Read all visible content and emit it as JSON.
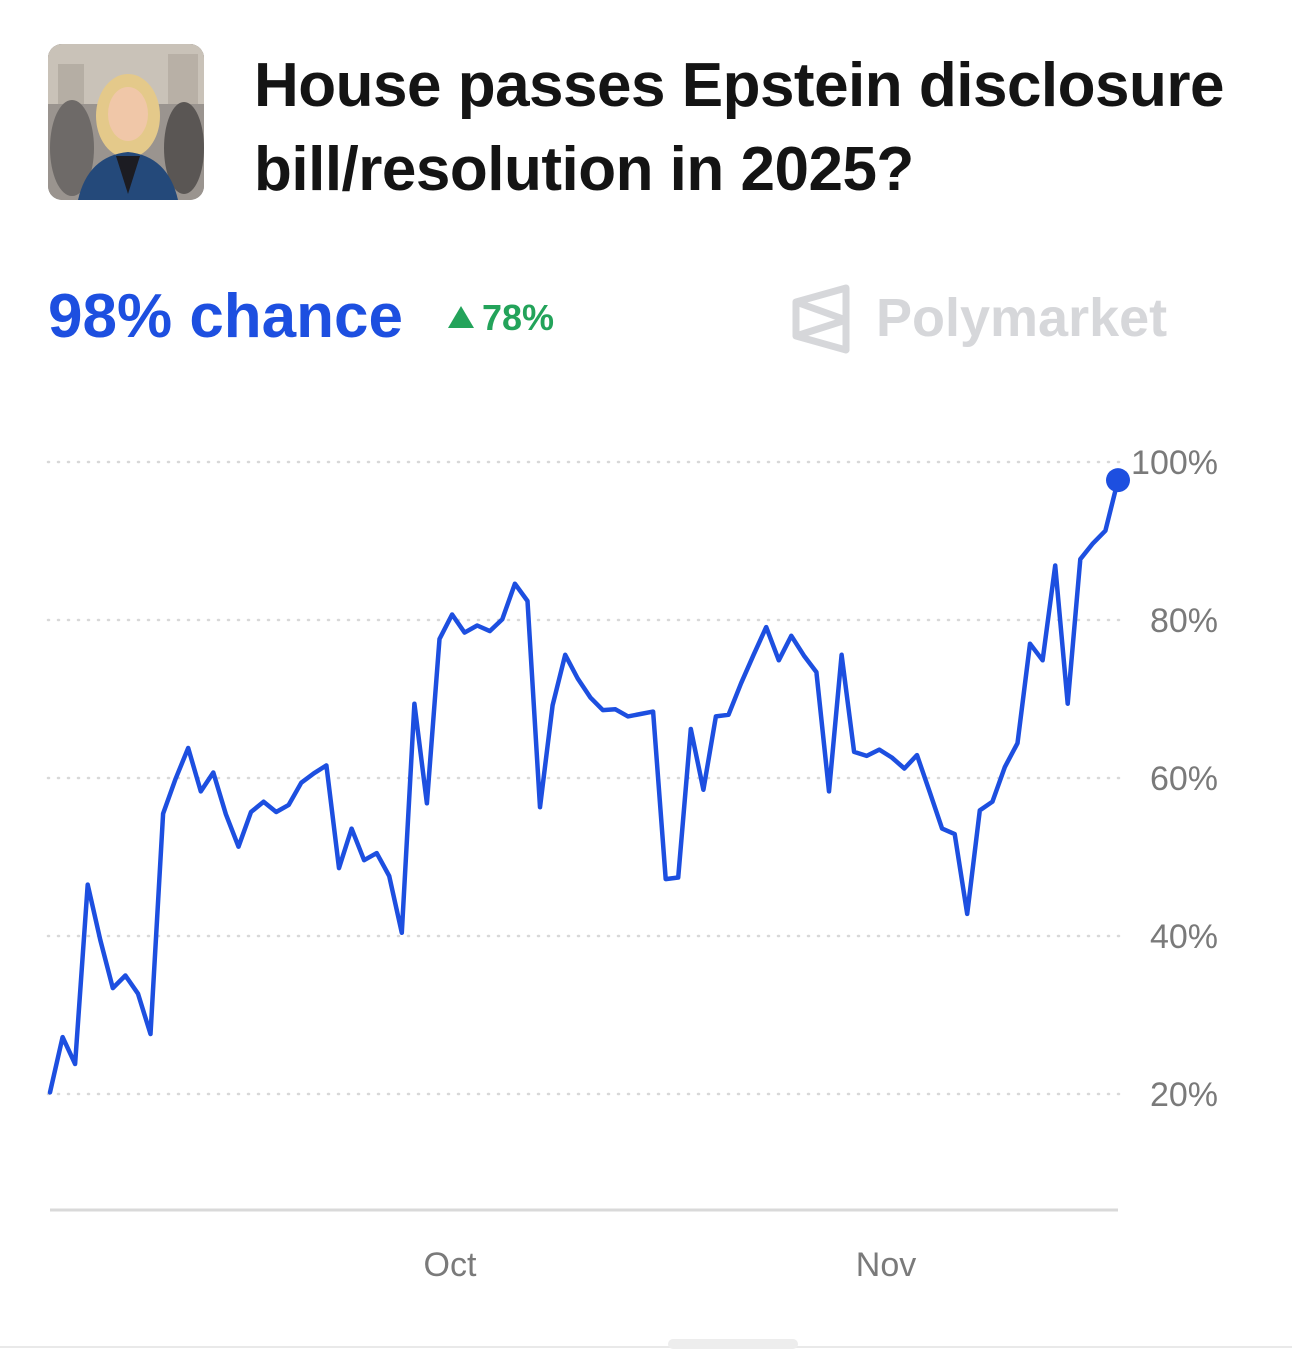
{
  "market": {
    "title": "House passes Epstein disclosure bill/resolution in 2025?",
    "chance_label": "98% chance",
    "delta_label": "78%",
    "brand": "Polymarket"
  },
  "colors": {
    "line": "#1d4fe0",
    "up": "#23a35a",
    "brand": "#d6d7da",
    "grid": "#d8d8d8"
  },
  "chart_data": {
    "type": "line",
    "title": "",
    "xlabel": "",
    "ylabel": "",
    "ylim": [
      20,
      100
    ],
    "y_ticks": [
      100,
      80,
      60,
      40,
      20
    ],
    "y_tick_labels": [
      "100%",
      "80%",
      "60%",
      "40%",
      "20%"
    ],
    "x_ticks": [
      "Oct",
      "Nov"
    ],
    "grid": "horizontal dotted",
    "series": [
      {
        "values": [
          20.2,
          27.2,
          23.8,
          46.5,
          39.5,
          33.4,
          35.0,
          32.7,
          27.6,
          55.5,
          59.9,
          63.8,
          58.3,
          60.7,
          55.4,
          51.3,
          55.7,
          57.0,
          55.7,
          56.6,
          59.4,
          60.6,
          61.6,
          48.6,
          53.6,
          49.6,
          50.5,
          47.6,
          40.4,
          69.4,
          56.8,
          77.6,
          80.7,
          78.4,
          79.3,
          78.6,
          80.1,
          84.6,
          82.4,
          56.3,
          69.2,
          75.6,
          72.6,
          70.2,
          68.6,
          68.7,
          67.8,
          68.1,
          68.4,
          47.2,
          47.4,
          66.2,
          58.5,
          67.8,
          68.0,
          72.0,
          75.6,
          79.1,
          74.9,
          78.0,
          75.5,
          73.4,
          58.3,
          75.6,
          63.3,
          62.8,
          63.6,
          62.6,
          61.2,
          62.9,
          58.3,
          53.6,
          52.9,
          42.8,
          55.9,
          57.0,
          61.4,
          64.4,
          77.0,
          74.9,
          86.9,
          69.4,
          87.7,
          89.7,
          91.3,
          97.7
        ]
      }
    ]
  }
}
